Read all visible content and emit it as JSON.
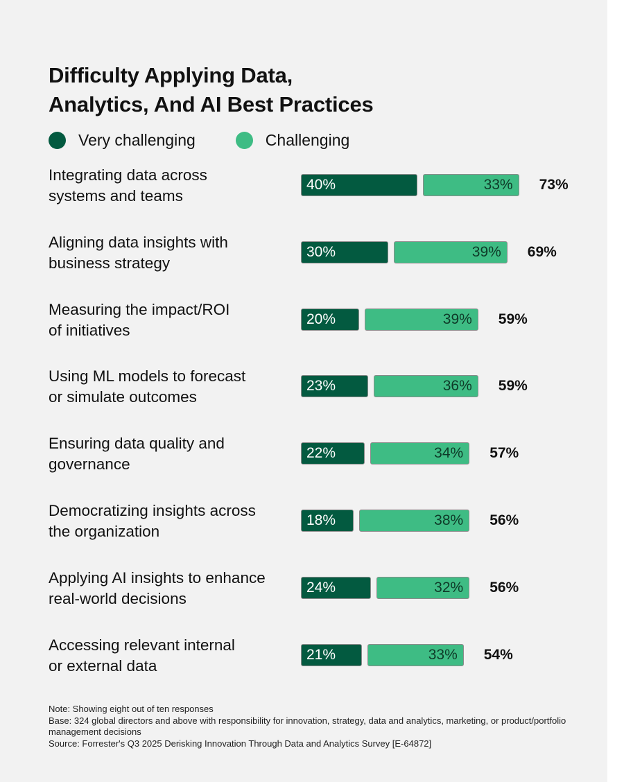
{
  "chart_data": {
    "type": "bar",
    "orientation": "horizontal",
    "stacked": true,
    "title": "Difficulty Applying Data, Analytics, And AI Best Practices",
    "title_lines": [
      "Difficulty Applying Data,",
      "Analytics, And AI Best Practices"
    ],
    "legend": {
      "placement": "top-left",
      "items": [
        {
          "name": "Very challenging",
          "color": "#035a40"
        },
        {
          "name": "Challenging",
          "color": "#3ebc84"
        }
      ]
    },
    "categories": [
      "Integrating data across systems and teams",
      "Aligning data insights with business strategy",
      "Measuring the impact/ROI of initiatives",
      "Using ML models to forecast or simulate outcomes",
      "Ensuring data quality and governance",
      "Democratizing insights across the organization",
      "Applying AI insights to enhance real-world decisions",
      "Accessing relevant internal or external data"
    ],
    "category_lines": [
      [
        "Integrating data across",
        "systems and teams"
      ],
      [
        "Aligning data insights with",
        "business strategy"
      ],
      [
        "Measuring the impact/ROI",
        "of initiatives"
      ],
      [
        "Using ML models to forecast",
        "or simulate outcomes"
      ],
      [
        "Ensuring data quality and",
        "governance"
      ],
      [
        "Democratizing insights across",
        "the organization"
      ],
      [
        "Applying AI insights to enhance",
        "real-world decisions"
      ],
      [
        "Accessing relevant internal",
        "or external data"
      ]
    ],
    "series": [
      {
        "name": "Very challenging",
        "color": "#035a40",
        "values": [
          40,
          30,
          20,
          23,
          22,
          18,
          24,
          21
        ]
      },
      {
        "name": "Challenging",
        "color": "#3ebc84",
        "values": [
          33,
          39,
          39,
          36,
          34,
          38,
          32,
          33
        ]
      }
    ],
    "totals": [
      73,
      69,
      59,
      59,
      57,
      56,
      56,
      54
    ],
    "value_suffix": "%",
    "grid": false
  },
  "notes": [
    "Note: Showing eight out of ten responses",
    "Base: 324 global directors and above with responsibility for innovation, strategy, data and analytics, marketing, or product/portfolio management decisions",
    "Source: Forrester's Q3 2025 Derisking Innovation Through Data and Analytics Survey [E-64872]"
  ]
}
